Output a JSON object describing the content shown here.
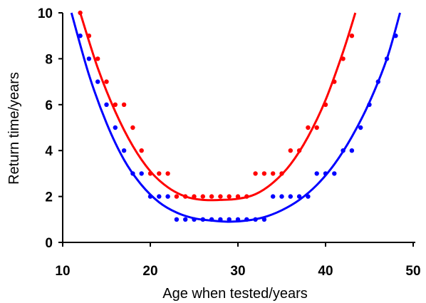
{
  "chart_data": {
    "type": "scatter",
    "title": "",
    "xlabel": "Age when tested/years",
    "ylabel": "Return time/years",
    "xlim": [
      10,
      50
    ],
    "ylim": [
      0,
      10
    ],
    "x_ticks": [
      10,
      20,
      30,
      40,
      50
    ],
    "y_ticks": [
      0,
      2,
      4,
      6,
      8,
      10
    ],
    "x_tick_labels": [
      "10",
      "20",
      "30",
      "40",
      "50"
    ],
    "y_tick_labels": [
      "0",
      "2",
      "4",
      "6",
      "8",
      "10"
    ],
    "grid": false,
    "legend": "none",
    "series": [
      {
        "color": "#ff0000",
        "points": [
          [
            12,
            10
          ],
          [
            13,
            9
          ],
          [
            14,
            8
          ],
          [
            15,
            7
          ],
          [
            16,
            6
          ],
          [
            17,
            6
          ],
          [
            18,
            5
          ],
          [
            19,
            4
          ],
          [
            20,
            3
          ],
          [
            21,
            3
          ],
          [
            22,
            3
          ],
          [
            23,
            2
          ],
          [
            24,
            2
          ],
          [
            25,
            2
          ],
          [
            26,
            2
          ],
          [
            27,
            2
          ],
          [
            28,
            2
          ],
          [
            29,
            2
          ],
          [
            30,
            2
          ],
          [
            31,
            2
          ],
          [
            32,
            3
          ],
          [
            33,
            3
          ],
          [
            34,
            3
          ],
          [
            35,
            3
          ],
          [
            36,
            4
          ],
          [
            37,
            4
          ],
          [
            38,
            5
          ],
          [
            39,
            5
          ],
          [
            40,
            6
          ],
          [
            41,
            7
          ],
          [
            42,
            8
          ],
          [
            43,
            9
          ]
        ],
        "fit": [
          [
            12,
            10
          ],
          [
            14,
            7.6
          ],
          [
            16,
            5.7
          ],
          [
            18,
            4.2
          ],
          [
            20,
            3.1
          ],
          [
            22,
            2.4
          ],
          [
            24,
            2.0
          ],
          [
            26,
            1.85
          ],
          [
            28,
            1.85
          ],
          [
            30,
            1.9
          ],
          [
            32,
            2.1
          ],
          [
            34,
            2.6
          ],
          [
            36,
            3.4
          ],
          [
            38,
            4.6
          ],
          [
            40,
            6.2
          ],
          [
            42,
            8.3
          ],
          [
            43.4,
            10
          ]
        ]
      },
      {
        "color": "#0000ff",
        "points": [
          [
            12,
            9
          ],
          [
            13,
            8
          ],
          [
            14,
            7
          ],
          [
            15,
            6
          ],
          [
            16,
            5
          ],
          [
            17,
            4
          ],
          [
            18,
            3
          ],
          [
            19,
            3
          ],
          [
            20,
            2
          ],
          [
            21,
            2
          ],
          [
            22,
            2
          ],
          [
            23,
            1
          ],
          [
            24,
            1
          ],
          [
            25,
            1
          ],
          [
            26,
            1
          ],
          [
            27,
            1
          ],
          [
            28,
            1
          ],
          [
            29,
            1
          ],
          [
            30,
            1
          ],
          [
            31,
            1
          ],
          [
            32,
            1
          ],
          [
            33,
            1
          ],
          [
            34,
            2
          ],
          [
            35,
            2
          ],
          [
            36,
            2
          ],
          [
            37,
            2
          ],
          [
            38,
            2
          ],
          [
            39,
            3
          ],
          [
            40,
            3
          ],
          [
            41,
            3
          ],
          [
            42,
            4
          ],
          [
            43,
            4
          ],
          [
            44,
            5
          ],
          [
            45,
            6
          ],
          [
            46,
            7
          ],
          [
            47,
            8
          ],
          [
            48,
            9
          ]
        ],
        "fit": [
          [
            11,
            10
          ],
          [
            13,
            7.3
          ],
          [
            15,
            5.2
          ],
          [
            17,
            3.6
          ],
          [
            19,
            2.5
          ],
          [
            21,
            1.75
          ],
          [
            23,
            1.3
          ],
          [
            25,
            1.05
          ],
          [
            27,
            0.95
          ],
          [
            29,
            0.9
          ],
          [
            31,
            0.95
          ],
          [
            33,
            1.1
          ],
          [
            35,
            1.4
          ],
          [
            37,
            1.85
          ],
          [
            39,
            2.5
          ],
          [
            41,
            3.4
          ],
          [
            43,
            4.6
          ],
          [
            45,
            6.1
          ],
          [
            47,
            8.0
          ],
          [
            48.5,
            10
          ]
        ]
      }
    ]
  }
}
